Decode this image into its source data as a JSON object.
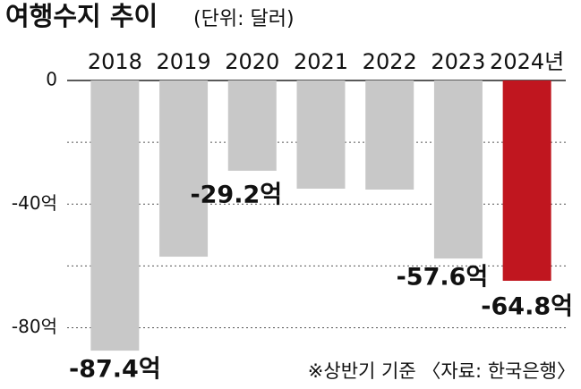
{
  "chart_data": {
    "type": "bar",
    "title": "여행수지 추이",
    "subtitle": "(단위: 달러)",
    "categories": [
      "2018",
      "2019",
      "2020",
      "2021",
      "2022",
      "2023",
      "2024년"
    ],
    "values": [
      -87.4,
      -57,
      -29.2,
      -35,
      -35.3,
      -57.6,
      -64.8
    ],
    "value_labels": [
      "-87.4억",
      null,
      "-29.2억",
      null,
      null,
      "-57.6억",
      "-64.8억"
    ],
    "colors": [
      "#c8c8c8",
      "#c8c8c8",
      "#c8c8c8",
      "#c8c8c8",
      "#c8c8c8",
      "#c8c8c8",
      "#c0161f"
    ],
    "ylim": [
      0,
      -92
    ],
    "yticks": [
      0,
      {
        "value": -40,
        "label": "-40억"
      },
      {
        "value": -80,
        "label": "-80억"
      }
    ],
    "minor_gridlines": [
      -20,
      -60
    ],
    "grid": true,
    "note": "※상반기 기준  〈자료: 한국은행〉"
  }
}
